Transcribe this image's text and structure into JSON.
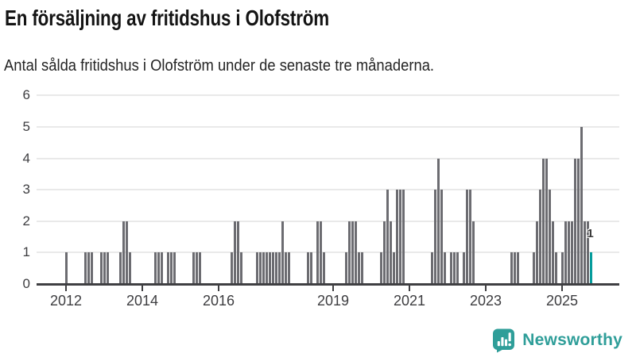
{
  "title": "En försäljning av fritidshus i Olofström",
  "subtitle": "Antal sålda fritidshus i Olofström under de senaste tre månaderna.",
  "branding": {
    "logo_text": "Newsworthy",
    "logo_icon": "bar-chart-speech-bubble-icon",
    "logo_color": "#2F9E99"
  },
  "colors": {
    "background": "#FFFFFF",
    "bar": "#6C6C71",
    "highlight": "#069C9C",
    "axis": "#3F3F42",
    "gridline": "#E9E9E9",
    "title_text": "#141414",
    "tick_text": "#3D3D40"
  },
  "chart_data": {
    "type": "bar",
    "title": "En försäljning av fritidshus i Olofström",
    "subtitle": "Antal sålda fritidshus i Olofström under de senaste tre månaderna.",
    "xlabel": "",
    "ylabel": "",
    "ylim": [
      0,
      6
    ],
    "yticks": [
      0,
      1,
      2,
      3,
      4,
      5,
      6
    ],
    "xticks": [
      2012,
      2014,
      2016,
      2019,
      2021,
      2023,
      2025
    ],
    "grid": "horizontal",
    "frequency": "monthly",
    "bar_color": "#6C6C71",
    "highlight_color": "#069C9C",
    "highlight_label": "1",
    "points": [
      {
        "date": "2012-01",
        "value": 1
      },
      {
        "date": "2012-07",
        "value": 1
      },
      {
        "date": "2012-08",
        "value": 1
      },
      {
        "date": "2012-09",
        "value": 1
      },
      {
        "date": "2012-12",
        "value": 1
      },
      {
        "date": "2013-01",
        "value": 1
      },
      {
        "date": "2013-02",
        "value": 1
      },
      {
        "date": "2013-06",
        "value": 1
      },
      {
        "date": "2013-07",
        "value": 2
      },
      {
        "date": "2013-08",
        "value": 2
      },
      {
        "date": "2013-09",
        "value": 1
      },
      {
        "date": "2014-05",
        "value": 1
      },
      {
        "date": "2014-06",
        "value": 1
      },
      {
        "date": "2014-07",
        "value": 1
      },
      {
        "date": "2014-09",
        "value": 1
      },
      {
        "date": "2014-10",
        "value": 1
      },
      {
        "date": "2014-11",
        "value": 1
      },
      {
        "date": "2015-05",
        "value": 1
      },
      {
        "date": "2015-06",
        "value": 1
      },
      {
        "date": "2015-07",
        "value": 1
      },
      {
        "date": "2016-05",
        "value": 1
      },
      {
        "date": "2016-06",
        "value": 2
      },
      {
        "date": "2016-07",
        "value": 2
      },
      {
        "date": "2016-08",
        "value": 1
      },
      {
        "date": "2017-01",
        "value": 1
      },
      {
        "date": "2017-02",
        "value": 1
      },
      {
        "date": "2017-03",
        "value": 1
      },
      {
        "date": "2017-04",
        "value": 1
      },
      {
        "date": "2017-05",
        "value": 1
      },
      {
        "date": "2017-06",
        "value": 1
      },
      {
        "date": "2017-07",
        "value": 1
      },
      {
        "date": "2017-08",
        "value": 1
      },
      {
        "date": "2017-09",
        "value": 2
      },
      {
        "date": "2017-10",
        "value": 1
      },
      {
        "date": "2017-11",
        "value": 1
      },
      {
        "date": "2018-05",
        "value": 1
      },
      {
        "date": "2018-06",
        "value": 1
      },
      {
        "date": "2018-08",
        "value": 2
      },
      {
        "date": "2018-09",
        "value": 2
      },
      {
        "date": "2018-10",
        "value": 1
      },
      {
        "date": "2019-05",
        "value": 1
      },
      {
        "date": "2019-06",
        "value": 2
      },
      {
        "date": "2019-07",
        "value": 2
      },
      {
        "date": "2019-08",
        "value": 2
      },
      {
        "date": "2019-09",
        "value": 1
      },
      {
        "date": "2019-10",
        "value": 1
      },
      {
        "date": "2020-04",
        "value": 1
      },
      {
        "date": "2020-05",
        "value": 2
      },
      {
        "date": "2020-06",
        "value": 3
      },
      {
        "date": "2020-07",
        "value": 2
      },
      {
        "date": "2020-08",
        "value": 1
      },
      {
        "date": "2020-09",
        "value": 3
      },
      {
        "date": "2020-10",
        "value": 3
      },
      {
        "date": "2020-11",
        "value": 3
      },
      {
        "date": "2021-08",
        "value": 1
      },
      {
        "date": "2021-09",
        "value": 3
      },
      {
        "date": "2021-10",
        "value": 4
      },
      {
        "date": "2021-11",
        "value": 3
      },
      {
        "date": "2021-12",
        "value": 1
      },
      {
        "date": "2022-02",
        "value": 1
      },
      {
        "date": "2022-03",
        "value": 1
      },
      {
        "date": "2022-04",
        "value": 1
      },
      {
        "date": "2022-06",
        "value": 1
      },
      {
        "date": "2022-07",
        "value": 3
      },
      {
        "date": "2022-08",
        "value": 3
      },
      {
        "date": "2022-09",
        "value": 2
      },
      {
        "date": "2023-09",
        "value": 1
      },
      {
        "date": "2023-10",
        "value": 1
      },
      {
        "date": "2023-11",
        "value": 1
      },
      {
        "date": "2024-04",
        "value": 1
      },
      {
        "date": "2024-05",
        "value": 2
      },
      {
        "date": "2024-06",
        "value": 3
      },
      {
        "date": "2024-07",
        "value": 4
      },
      {
        "date": "2024-08",
        "value": 4
      },
      {
        "date": "2024-09",
        "value": 3
      },
      {
        "date": "2024-10",
        "value": 2
      },
      {
        "date": "2024-11",
        "value": 1
      },
      {
        "date": "2025-01",
        "value": 1
      },
      {
        "date": "2025-02",
        "value": 2
      },
      {
        "date": "2025-03",
        "value": 2
      },
      {
        "date": "2025-04",
        "value": 2
      },
      {
        "date": "2025-05",
        "value": 4
      },
      {
        "date": "2025-06",
        "value": 4
      },
      {
        "date": "2025-07",
        "value": 5
      },
      {
        "date": "2025-08",
        "value": 2
      },
      {
        "date": "2025-09",
        "value": 2
      },
      {
        "date": "2025-10",
        "value": 1,
        "highlight": true
      }
    ]
  }
}
